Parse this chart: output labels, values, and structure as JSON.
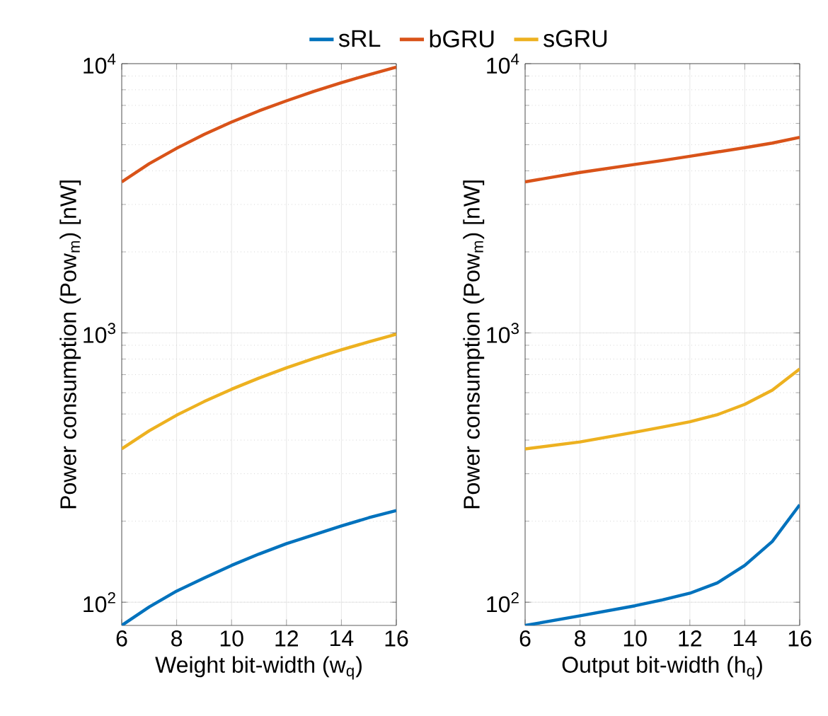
{
  "chart_data": [
    {
      "type": "line",
      "xlabel": "Weight bit-width (w$_{q}$)",
      "ylabel": "Power consumption (Pow$_{m}$) [nW]",
      "log": "y",
      "grid": true,
      "legend": "top",
      "marker": "none",
      "line_style": "solid",
      "x": [
        6,
        7,
        8,
        9,
        10,
        11,
        12,
        13,
        14,
        15,
        16
      ],
      "xlim": [
        6,
        16
      ],
      "xticks": [
        6,
        8,
        10,
        12,
        14,
        16
      ],
      "ylim": [
        82,
        10000
      ],
      "yticks": [
        {
          "value": 100,
          "label": "10$^{2}$"
        },
        {
          "value": 1000,
          "label": "10$^{3}$"
        },
        {
          "value": 10000,
          "label": "10$^{4}$"
        }
      ],
      "series": [
        {
          "name": "sRL",
          "color": "#0072bd",
          "values": [
            82,
            96,
            110,
            123,
            137,
            151,
            165,
            178,
            192,
            206,
            219
          ]
        },
        {
          "name": "bGRU",
          "color": "#d95319",
          "values": [
            3640,
            4250,
            4850,
            5460,
            6070,
            6680,
            7280,
            7890,
            8500,
            9100,
            9710
          ]
        },
        {
          "name": "sGRU",
          "color": "#edb120",
          "values": [
            371,
            433,
            495,
            556,
            618,
            680,
            742,
            804,
            866,
            927,
            989
          ]
        }
      ]
    },
    {
      "type": "line",
      "xlabel": "Output bit-width (h$_{q}$)",
      "ylabel": "Power consumption (Pow$_{m}$) [nW]",
      "log": "y",
      "grid": true,
      "marker": "none",
      "line_style": "solid",
      "x": [
        6,
        8,
        10,
        11,
        12,
        13,
        14,
        15,
        16
      ],
      "xlim": [
        6,
        16
      ],
      "xticks": [
        6,
        8,
        10,
        12,
        14,
        16
      ],
      "ylim": [
        82,
        10000
      ],
      "yticks": [
        {
          "value": 100,
          "label": "10$^{2}$"
        },
        {
          "value": 1000,
          "label": "10$^{3}$"
        },
        {
          "value": 10000,
          "label": "10$^{4}$"
        }
      ],
      "series": [
        {
          "color": "#0072bd",
          "values": [
            82,
            89,
            97,
            102,
            108,
            118,
            137,
            168,
            230
          ]
        },
        {
          "color": "#d95319",
          "values": [
            3640,
            3945,
            4226,
            4370,
            4530,
            4700,
            4875,
            5070,
            5325
          ]
        },
        {
          "color": "#edb120",
          "values": [
            371,
            394,
            428,
            447,
            468,
            497,
            543,
            613,
            735
          ]
        }
      ]
    }
  ]
}
